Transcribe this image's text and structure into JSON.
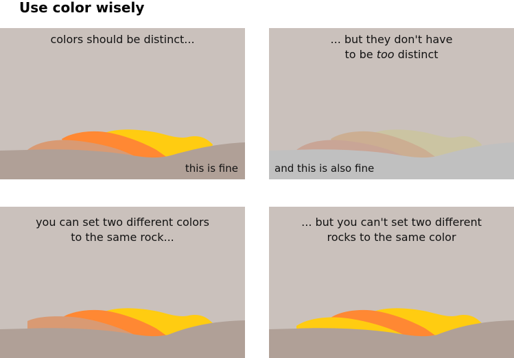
{
  "title": "Use color wisely",
  "colors": {
    "sky": "#cac1bc",
    "ground": "#b0a097",
    "ground_gray": "#c0c0c0",
    "rock_a": "#d99a73",
    "rock_b": "#ff8833",
    "rock_c": "#ffcc11",
    "rock_a_muted": "#c9a596",
    "rock_b_muted": "#ccae92",
    "rock_c_muted": "#cbc4a2"
  },
  "panels": [
    {
      "caption_l1": "colors should be distinct...",
      "caption_l2": "",
      "note": "this is fine"
    },
    {
      "caption_l1_pre": "... but they don't have",
      "caption_l2_pre": "to be ",
      "caption_l2_em": "too",
      "caption_l2_post": " distinct",
      "note": "and this is also fine"
    },
    {
      "caption_l1": "you can set two different colors",
      "caption_l2": "to the same rock...",
      "note": ""
    },
    {
      "caption_l1": "... but you can't set two different",
      "caption_l2": "rocks to the same color",
      "note": ""
    }
  ]
}
